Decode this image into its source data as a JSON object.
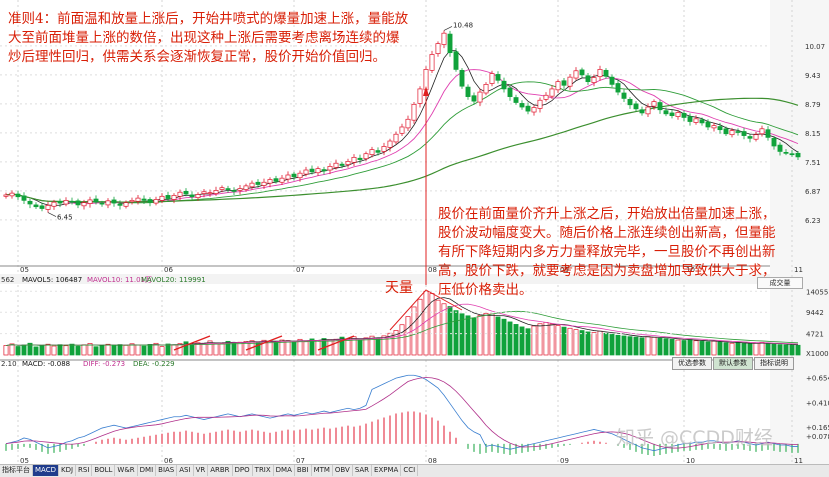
{
  "annotations": {
    "top": "准则4：前面温和放量上涨后，开始井喷式的爆量加速上涨，量能放大至前面堆量上涨的数倍，出现这种上涨后需要考虑离场连续的爆炒后理性回归，供需关系会逐渐恢复正常，股价开始价值回归。",
    "bottom": "股价在前面量价齐升上涨之后，开始放出倍量加速上涨，股价波动幅度变大。随后价格上涨连续创出新高，但量能有所下降短期内多方力量释放完毕，一旦股价不再创出新高，股价下跌，就要考虑是因为卖盘增加导致供大于求，压低价格卖出。",
    "volume_label": "天量"
  },
  "indicator_labels": {
    "vol_left": "562",
    "mavol5": "MAVOL5: 106487",
    "mavol10": "MAVOL10: 11.01万",
    "mavol20": "MAVOL20: 119991",
    "macd_left": "2.10",
    "macd": "MACD: -0.088",
    "diff": "DIFF: -0.273",
    "dea": "DEA: -0.229"
  },
  "buttons": {
    "b1": "优选参数",
    "b2": "默认参数",
    "b3": "指标说明"
  },
  "dropdown": "成交量",
  "watermark": "知乎 @CCDD财经",
  "tabs": [
    "指标平台",
    "MACD",
    "KDJ",
    "RSI",
    "BOLL",
    "W&R",
    "DMI",
    "BIAS",
    "ASI",
    "VR",
    "ARBR",
    "DPO",
    "TRIX",
    "DMA",
    "BBI",
    "MTM",
    "OBV",
    "SAR",
    "EXPMA",
    "CCI"
  ],
  "colors": {
    "up": "#e0162c",
    "down": "#10a23b",
    "ma5": "#222222",
    "ma10": "#e040b0",
    "ma20": "#2f9d39",
    "ma60": "#3c8f2f",
    "annotation": "#d81e06"
  },
  "chart_data": {
    "type": "candlestick",
    "x_ticks": [
      {
        "label": "05",
        "index": 2
      },
      {
        "label": "06",
        "index": 26
      },
      {
        "label": "07",
        "index": 48
      },
      {
        "label": "08",
        "index": 70
      },
      {
        "label": "09",
        "index": 92
      },
      {
        "label": "10",
        "index": 113
      },
      {
        "label": "11",
        "index": 131
      }
    ],
    "price_axis": {
      "ylim": [
        5.3,
        10.95
      ],
      "ticks": [
        10.07,
        9.43,
        8.79,
        8.15,
        7.51,
        6.87,
        6.23
      ]
    },
    "high_label": "10.48",
    "low_label": "6.45",
    "volume_axis": {
      "ylim": [
        0,
        15000
      ],
      "ticks": [
        14055,
        9442,
        4721
      ]
    },
    "volume_unit": "X100000",
    "macd_axis": {
      "ylim": [
        -0.16,
        0.74
      ],
      "ticks": [
        0.654,
        0.41,
        0.165,
        0.078
      ]
    },
    "price_close": [
      6.78,
      6.82,
      6.74,
      6.66,
      6.58,
      6.52,
      6.48,
      6.55,
      6.62,
      6.6,
      6.66,
      6.63,
      6.56,
      6.61,
      6.67,
      6.62,
      6.58,
      6.65,
      6.6,
      6.55,
      6.61,
      6.66,
      6.71,
      6.66,
      6.62,
      6.68,
      6.75,
      6.7,
      6.77,
      6.84,
      6.8,
      6.74,
      6.79,
      6.85,
      6.83,
      6.88,
      6.94,
      6.9,
      6.86,
      6.92,
      6.98,
      7.04,
      7.01,
      7.06,
      7.12,
      7.08,
      7.15,
      7.22,
      7.18,
      7.26,
      7.33,
      7.29,
      7.36,
      7.31,
      7.41,
      7.48,
      7.43,
      7.52,
      7.61,
      7.56,
      7.69,
      7.78,
      7.72,
      7.85,
      7.97,
      8.12,
      8.28,
      8.45,
      8.78,
      9.12,
      9.55,
      9.88,
      10.12,
      10.35,
      9.92,
      9.55,
      9.18,
      8.95,
      8.85,
      9.05,
      9.22,
      9.46,
      9.31,
      9.12,
      8.95,
      8.82,
      8.72,
      8.63,
      8.71,
      8.87,
      8.98,
      9.12,
      9.28,
      9.2,
      9.38,
      9.52,
      9.43,
      9.28,
      9.37,
      9.55,
      9.4,
      9.22,
      9.05,
      8.91,
      8.77,
      8.68,
      8.59,
      8.72,
      8.84,
      8.66,
      8.57,
      8.53,
      8.6,
      8.49,
      8.4,
      8.46,
      8.37,
      8.28,
      8.31,
      8.22,
      8.13,
      8.2,
      8.16,
      8.09,
      8.03,
      8.11,
      8.24,
      8.05,
      7.86,
      7.74,
      7.71,
      7.68,
      7.62
    ],
    "volume": [
      2100,
      2450,
      1880,
      2220,
      2600,
      1790,
      2150,
      2380,
      1980,
      2290,
      2050,
      2400,
      1900,
      2260,
      2550,
      1830,
      2170,
      2370,
      2020,
      2310,
      2120,
      2480,
      2210,
      1970,
      2350,
      2580,
      1860,
      2430,
      2190,
      2500,
      2920,
      2380,
      2700,
      2520,
      3110,
      2640,
      2460,
      3020,
      2750,
      2820,
      2990,
      3150,
      2880,
      3250,
      3010,
      2950,
      3300,
      3180,
      2870,
      3460,
      3080,
      3550,
      3180,
      3640,
      3380,
      3480,
      3950,
      3320,
      4030,
      3270,
      3780,
      4160,
      3740,
      4220,
      4800,
      5420,
      6680,
      8470,
      10600,
      12300,
      14055,
      13560,
      12100,
      11300,
      10700,
      9800,
      9100,
      8650,
      8100,
      8700,
      9200,
      9050,
      8400,
      7900,
      7300,
      6750,
      6200,
      5800,
      6400,
      6900,
      7200,
      6850,
      6500,
      6150,
      5900,
      5600,
      5400,
      5100,
      4950,
      5250,
      4800,
      4600,
      4350,
      4200,
      4050,
      3950,
      3800,
      4050,
      3900,
      3700,
      3600,
      3450,
      3300,
      3200,
      3400,
      3150,
      3000,
      2900,
      3050,
      2850,
      2700,
      2600,
      2750,
      2550,
      2450,
      2600,
      2800,
      2500,
      2400,
      2300,
      2250,
      2200,
      2150
    ],
    "macd": [
      -0.07,
      -0.06,
      -0.05,
      -0.03,
      -0.04,
      -0.06,
      -0.08,
      -0.1,
      -0.09,
      -0.08,
      -0.06,
      -0.05,
      -0.03,
      -0.02,
      0.0,
      0.02,
      0.04,
      0.05,
      0.06,
      0.05,
      0.04,
      0.05,
      0.06,
      0.07,
      0.08,
      0.09,
      0.1,
      0.11,
      0.12,
      0.12,
      0.13,
      0.12,
      0.11,
      0.1,
      0.11,
      0.12,
      0.13,
      0.14,
      0.13,
      0.12,
      0.13,
      0.14,
      0.13,
      0.12,
      0.11,
      0.12,
      0.13,
      0.14,
      0.13,
      0.14,
      0.15,
      0.14,
      0.15,
      0.16,
      0.15,
      0.16,
      0.17,
      0.18,
      0.17,
      0.18,
      0.2,
      0.22,
      0.24,
      0.26,
      0.28,
      0.3,
      0.31,
      0.32,
      0.32,
      0.31,
      0.29,
      0.26,
      0.23,
      0.18,
      0.12,
      0.06,
      0.0,
      -0.05,
      -0.08,
      -0.1,
      -0.09,
      -0.08,
      -0.09,
      -0.1,
      -0.11,
      -0.1,
      -0.09,
      -0.08,
      -0.07,
      -0.06,
      -0.05,
      -0.04,
      -0.03,
      -0.02,
      -0.01,
      0.0,
      0.01,
      0.02,
      0.03,
      0.02,
      0.01,
      0.0,
      -0.02,
      -0.04,
      -0.06,
      -0.08,
      -0.1,
      -0.11,
      -0.12,
      -0.11,
      -0.1,
      -0.09,
      -0.08,
      -0.07,
      -0.07,
      -0.06,
      -0.06,
      -0.05,
      -0.05,
      -0.06,
      -0.07,
      -0.06,
      -0.05,
      -0.06,
      -0.07,
      -0.08,
      -0.07,
      -0.06,
      -0.07,
      -0.08,
      -0.08,
      -0.09,
      -0.09
    ]
  }
}
